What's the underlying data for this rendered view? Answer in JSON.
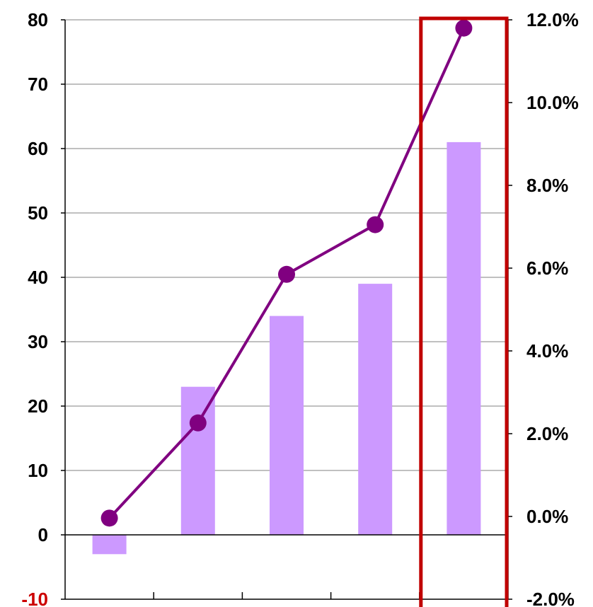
{
  "chart_data": {
    "type": "bar",
    "categories": [
      "",
      "",
      "",
      "",
      ""
    ],
    "series": [
      {
        "axis": "left",
        "kind": "bar",
        "values": [
          -3,
          23,
          34,
          39,
          61
        ]
      },
      {
        "axis": "right",
        "kind": "line",
        "values": [
          -0.04,
          2.26,
          5.85,
          7.05,
          11.8
        ]
      }
    ],
    "y_left": {
      "min": -10,
      "max": 80,
      "ticks": [
        "-10",
        "0",
        "10",
        "20",
        "30",
        "40",
        "50",
        "60",
        "70",
        "80"
      ],
      "negative_tick_color": "#cc0000"
    },
    "y_right": {
      "min": -2,
      "max": 12,
      "ticks": [
        "-2.0%",
        "0.0%",
        "2.0%",
        "4.0%",
        "6.0%",
        "8.0%",
        "10.0%",
        "12.0%"
      ]
    },
    "grid": true,
    "highlight_category_index": 4,
    "colors": {
      "bar": "#cc99ff",
      "line": "#800080",
      "highlight": "#c00000",
      "grid": "#808080",
      "text": "#000000"
    }
  }
}
